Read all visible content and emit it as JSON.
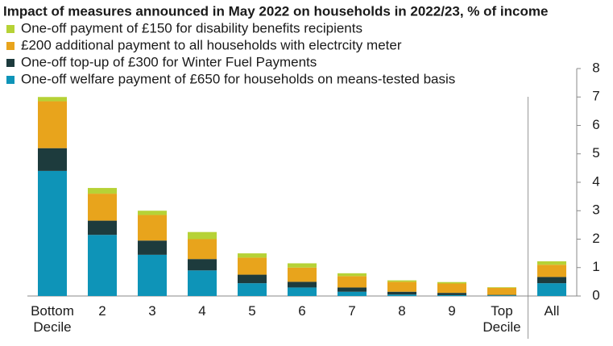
{
  "chart_data": {
    "type": "stacked_bar",
    "title": "Impact of measures announced in May 2022 on households in 2022/23, % of income",
    "categories": [
      "Bottom Decile",
      "2",
      "3",
      "4",
      "5",
      "6",
      "7",
      "8",
      "9",
      "Top Decile",
      "All"
    ],
    "series": [
      {
        "name": "One-off welfare payment of £650 for households on means-tested basis",
        "color": "#0e94b8",
        "values": [
          4.4,
          2.15,
          1.45,
          0.9,
          0.45,
          0.3,
          0.15,
          0.05,
          0.03,
          0.02,
          0.45
        ]
      },
      {
        "name": "One-off top-up of £300 for Winter Fuel Payments",
        "color": "#1d3b3d",
        "values": [
          0.8,
          0.5,
          0.5,
          0.4,
          0.3,
          0.2,
          0.15,
          0.1,
          0.08,
          0.02,
          0.22
        ]
      },
      {
        "name": "£200 additional payment to all households with electrcity meter",
        "color": "#e8a41c",
        "values": [
          1.65,
          0.95,
          0.9,
          0.7,
          0.6,
          0.5,
          0.4,
          0.35,
          0.33,
          0.25,
          0.43
        ]
      },
      {
        "name": "One-off payment of £150 for disability benefits recipients",
        "color": "#b6d236",
        "values": [
          0.15,
          0.2,
          0.15,
          0.25,
          0.15,
          0.15,
          0.1,
          0.05,
          0.05,
          0.02,
          0.12
        ]
      }
    ],
    "ylim": [
      0,
      8
    ],
    "yticks": [
      0,
      1,
      2,
      3,
      4,
      5,
      6,
      7,
      8
    ],
    "y_axis_side": "right",
    "legend": "top-left",
    "grid": false
  }
}
